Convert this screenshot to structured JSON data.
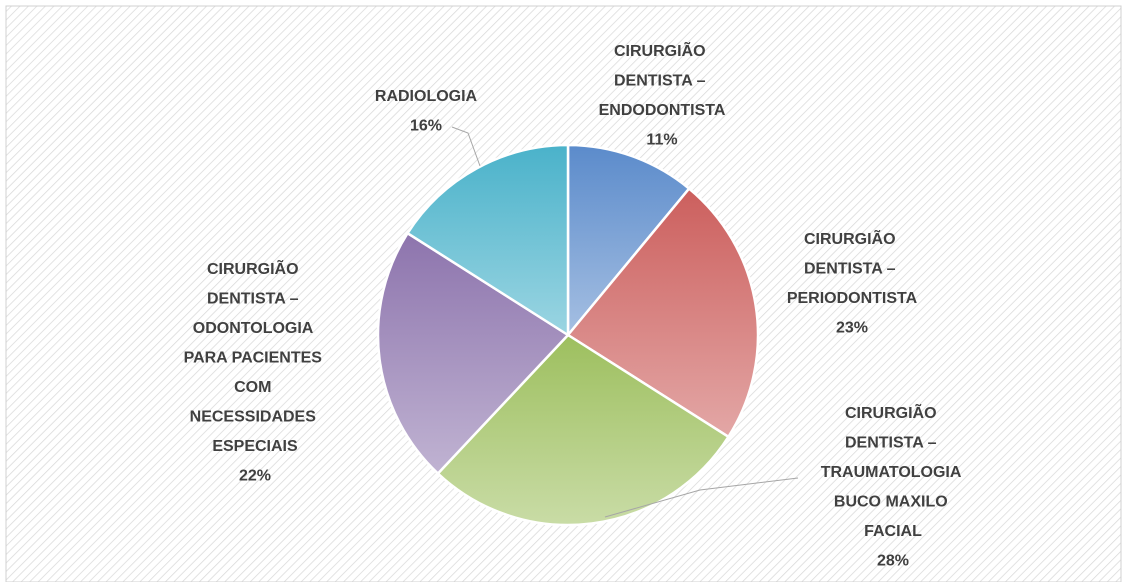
{
  "chart_data": {
    "type": "pie",
    "categories": [
      "CIRURGIÃO DENTISTA – ENDODONTISTA",
      "CIRURGIÃO DENTISTA – PERIODONTISTA",
      "CIRURGIÃO DENTISTA – TRAUMATOLOGIA BUCO MAXILO FACIAL",
      "CIRURGIÃO DENTISTA – ODONTOLOGIA PARA PACIENTES COM NECESSIDADES ESPECIAIS",
      "RADIOLOGIA"
    ],
    "values": [
      11,
      23,
      28,
      22,
      16
    ],
    "value_labels": [
      "11%",
      "23%",
      "28%",
      "22%",
      "16%"
    ],
    "colors": [
      "#5b8bcb",
      "#cc5f5d",
      "#9dbf5e",
      "#8d74ad",
      "#4ab2ca"
    ]
  }
}
